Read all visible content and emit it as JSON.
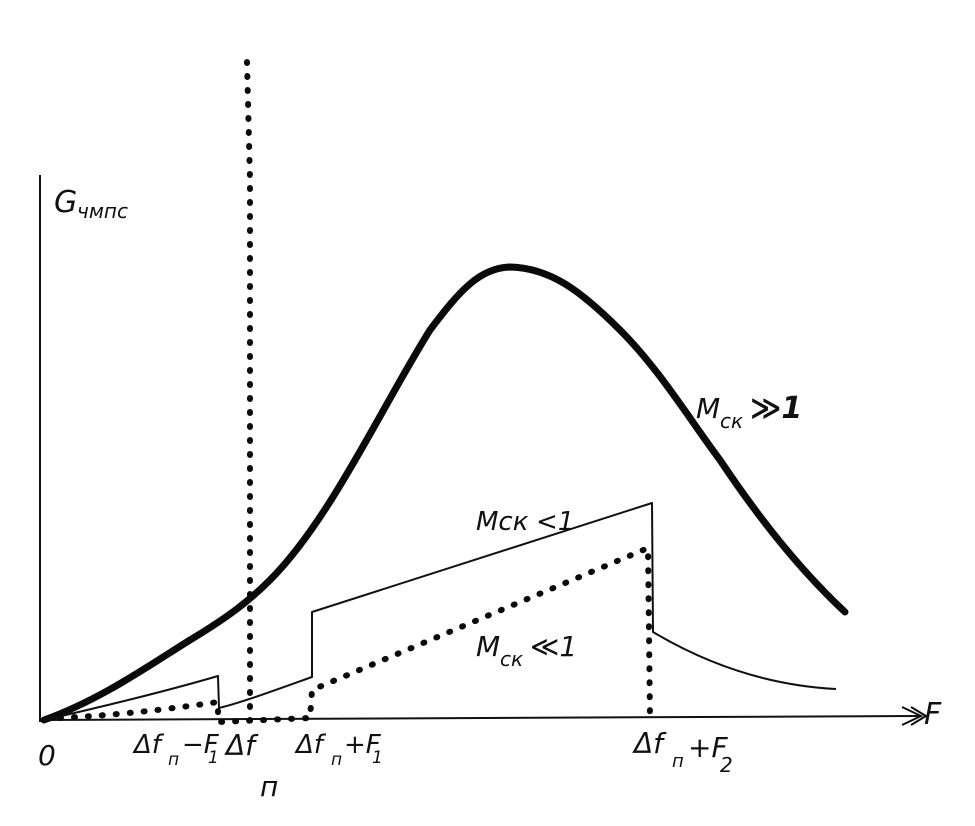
{
  "chart_data": {
    "type": "line",
    "title": "",
    "ylabel": "G",
    "ylabel_sub": "чмпс",
    "xlabel": "F",
    "origin_label": "0",
    "x_ticks": [
      {
        "key": "lo",
        "main": "Δf",
        "sub": "п",
        "suffix": "−F",
        "suffix_sub": "1"
      },
      {
        "key": "mid",
        "main": "Δf",
        "sub": "п",
        "suffix": "",
        "suffix_sub": ""
      },
      {
        "key": "hi1",
        "main": "Δf",
        "sub": "п",
        "suffix": "+F",
        "suffix_sub": "1"
      },
      {
        "key": "hi2",
        "main": "Δf",
        "sub": "п",
        "suffix": "+F",
        "suffix_sub": "2"
      }
    ],
    "series": [
      {
        "name": "Mск≫1",
        "style": "thick",
        "label_main": "M",
        "label_sub": "ск",
        "label_rel": "≫1"
      },
      {
        "name": "Mск<1",
        "style": "thin",
        "label_main": "Mск",
        "label_sub": "",
        "label_rel": "<1"
      },
      {
        "name": "Mск≪1",
        "style": "dotted",
        "label_main": "M",
        "label_sub": "ск",
        "label_rel": "≪1"
      }
    ],
    "grid": false,
    "legend": "none"
  }
}
